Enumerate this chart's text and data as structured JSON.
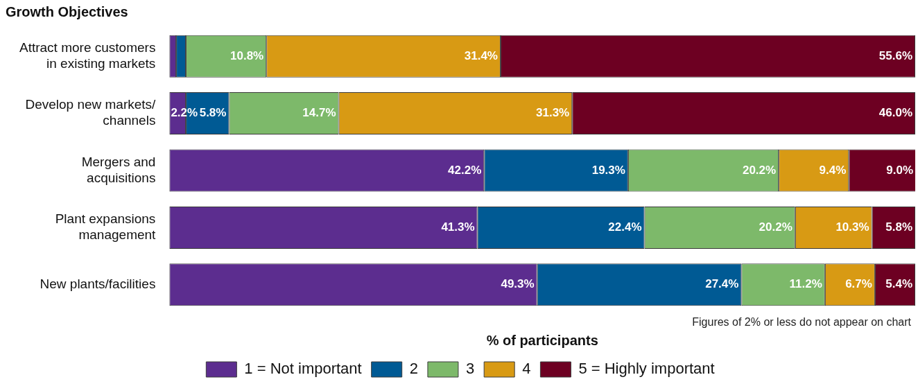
{
  "chart_data": {
    "type": "bar",
    "orientation": "horizontal",
    "stacked": true,
    "title": "Growth Objectives",
    "xlabel": "% of participants",
    "categories": [
      "Attract more customers in existing markets",
      "Develop new markets/ channels",
      "Mergers and acquisitions",
      "Plant expansions management",
      "New plants/facilities"
    ],
    "xlim": [
      0,
      100
    ],
    "tick_labels": "y",
    "grid": false,
    "legend": "bottom",
    "series": [
      {
        "name": "1 = Not important",
        "color": "#5c2d8f",
        "values": [
          0.9,
          2.2,
          42.2,
          41.3,
          49.3
        ],
        "value_labels": [
          null,
          "2.2%",
          "42.2%",
          "41.3%",
          "49.3%"
        ]
      },
      {
        "name": "2",
        "color": "#005a94",
        "values": [
          1.3,
          5.8,
          19.3,
          22.4,
          27.4
        ],
        "value_labels": [
          null,
          "5.8%",
          "19.3%",
          "22.4%",
          "27.4%"
        ]
      },
      {
        "name": "3",
        "color": "#7db96a",
        "values": [
          10.8,
          14.7,
          20.2,
          20.2,
          11.2
        ],
        "value_labels": [
          "10.8%",
          "14.7%",
          "20.2%",
          "20.2%",
          "11.2%"
        ]
      },
      {
        "name": "4",
        "color": "#d89a14",
        "values": [
          31.4,
          31.3,
          9.4,
          10.3,
          6.7
        ],
        "value_labels": [
          "31.4%",
          "31.3%",
          "9.4%",
          "10.3%",
          "6.7%"
        ]
      },
      {
        "name": "5 = Highly important",
        "color": "#6d0022",
        "values": [
          55.6,
          46.0,
          9.0,
          5.8,
          5.4
        ],
        "value_labels": [
          "55.6%",
          "46.0%",
          "9.0%",
          "5.8%",
          "5.4%"
        ]
      }
    ],
    "annotations": [
      "Figures of 2% or less do not appear on chart"
    ]
  }
}
